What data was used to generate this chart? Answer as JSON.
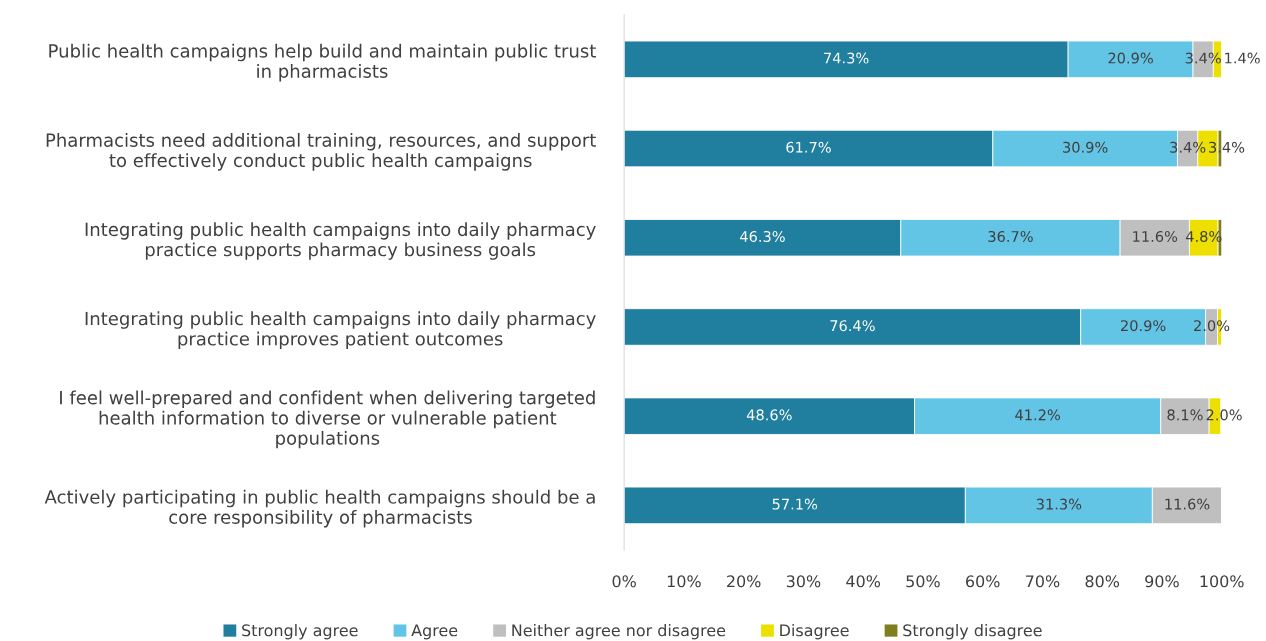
{
  "chart_data": {
    "type": "bar",
    "orientation": "horizontal",
    "stacked": true,
    "categories": [
      "Public health campaigns help build and maintain public trust\nin pharmacists",
      "Pharmacists need additional training, resources, and support\nto effectively conduct public health campaigns",
      "Integrating public health campaigns into daily pharmacy\npractice supports pharmacy business goals",
      "Integrating public health campaigns into daily pharmacy\npractice improves patient outcomes",
      "I feel well-prepared and confident when delivering targeted\nhealth information to diverse or vulnerable patient\npopulations",
      "Actively participating in public health campaigns should be a\ncore responsibility of pharmacists"
    ],
    "series": [
      {
        "name": "Strongly agree",
        "color": "#207e9e",
        "values": [
          74.3,
          61.7,
          46.3,
          76.4,
          48.6,
          57.1
        ],
        "value_labels": [
          "74.3%",
          "61.7%",
          "46.3%",
          "76.4%",
          "48.6%",
          "57.1%"
        ]
      },
      {
        "name": "Agree",
        "color": "#63c5e6",
        "values": [
          20.9,
          30.9,
          36.7,
          20.9,
          41.2,
          31.3
        ],
        "value_labels": [
          "20.9%",
          "30.9%",
          "36.7%",
          "20.9%",
          "41.2%",
          "31.3%"
        ]
      },
      {
        "name": "Neither agree nor disagree",
        "color": "#bfbfbf",
        "values": [
          3.4,
          3.4,
          11.6,
          2.0,
          8.1,
          11.6
        ],
        "value_labels": [
          "3.4%",
          "3.4%",
          "11.6%",
          "2.0%",
          "8.1%",
          "11.6%"
        ]
      },
      {
        "name": "Disagree",
        "color": "#ede000",
        "values": [
          1.4,
          3.4,
          4.8,
          0.7,
          2.0,
          null
        ],
        "value_labels": [
          "1.4%",
          "3.4%",
          "4.8%",
          null,
          "2.0%",
          null
        ]
      },
      {
        "name": "Strongly disagree",
        "color": "#7f7f1f",
        "values": [
          null,
          0.6,
          0.6,
          null,
          null,
          null
        ],
        "value_labels": [
          null,
          null,
          null,
          null,
          null,
          null
        ]
      }
    ],
    "xlim": [
      0,
      100
    ],
    "xticks": [
      {
        "value": 0,
        "label": "0%"
      },
      {
        "value": 10,
        "label": "10%"
      },
      {
        "value": 20,
        "label": "20%"
      },
      {
        "value": 30,
        "label": "30%"
      },
      {
        "value": 40,
        "label": "40%"
      },
      {
        "value": 50,
        "label": "50%"
      },
      {
        "value": 60,
        "label": "60%"
      },
      {
        "value": 70,
        "label": "70%"
      },
      {
        "value": 80,
        "label": "80%"
      },
      {
        "value": 90,
        "label": "90%"
      },
      {
        "value": 100,
        "label": "100%"
      }
    ],
    "grid": false,
    "legend": "bottom"
  }
}
